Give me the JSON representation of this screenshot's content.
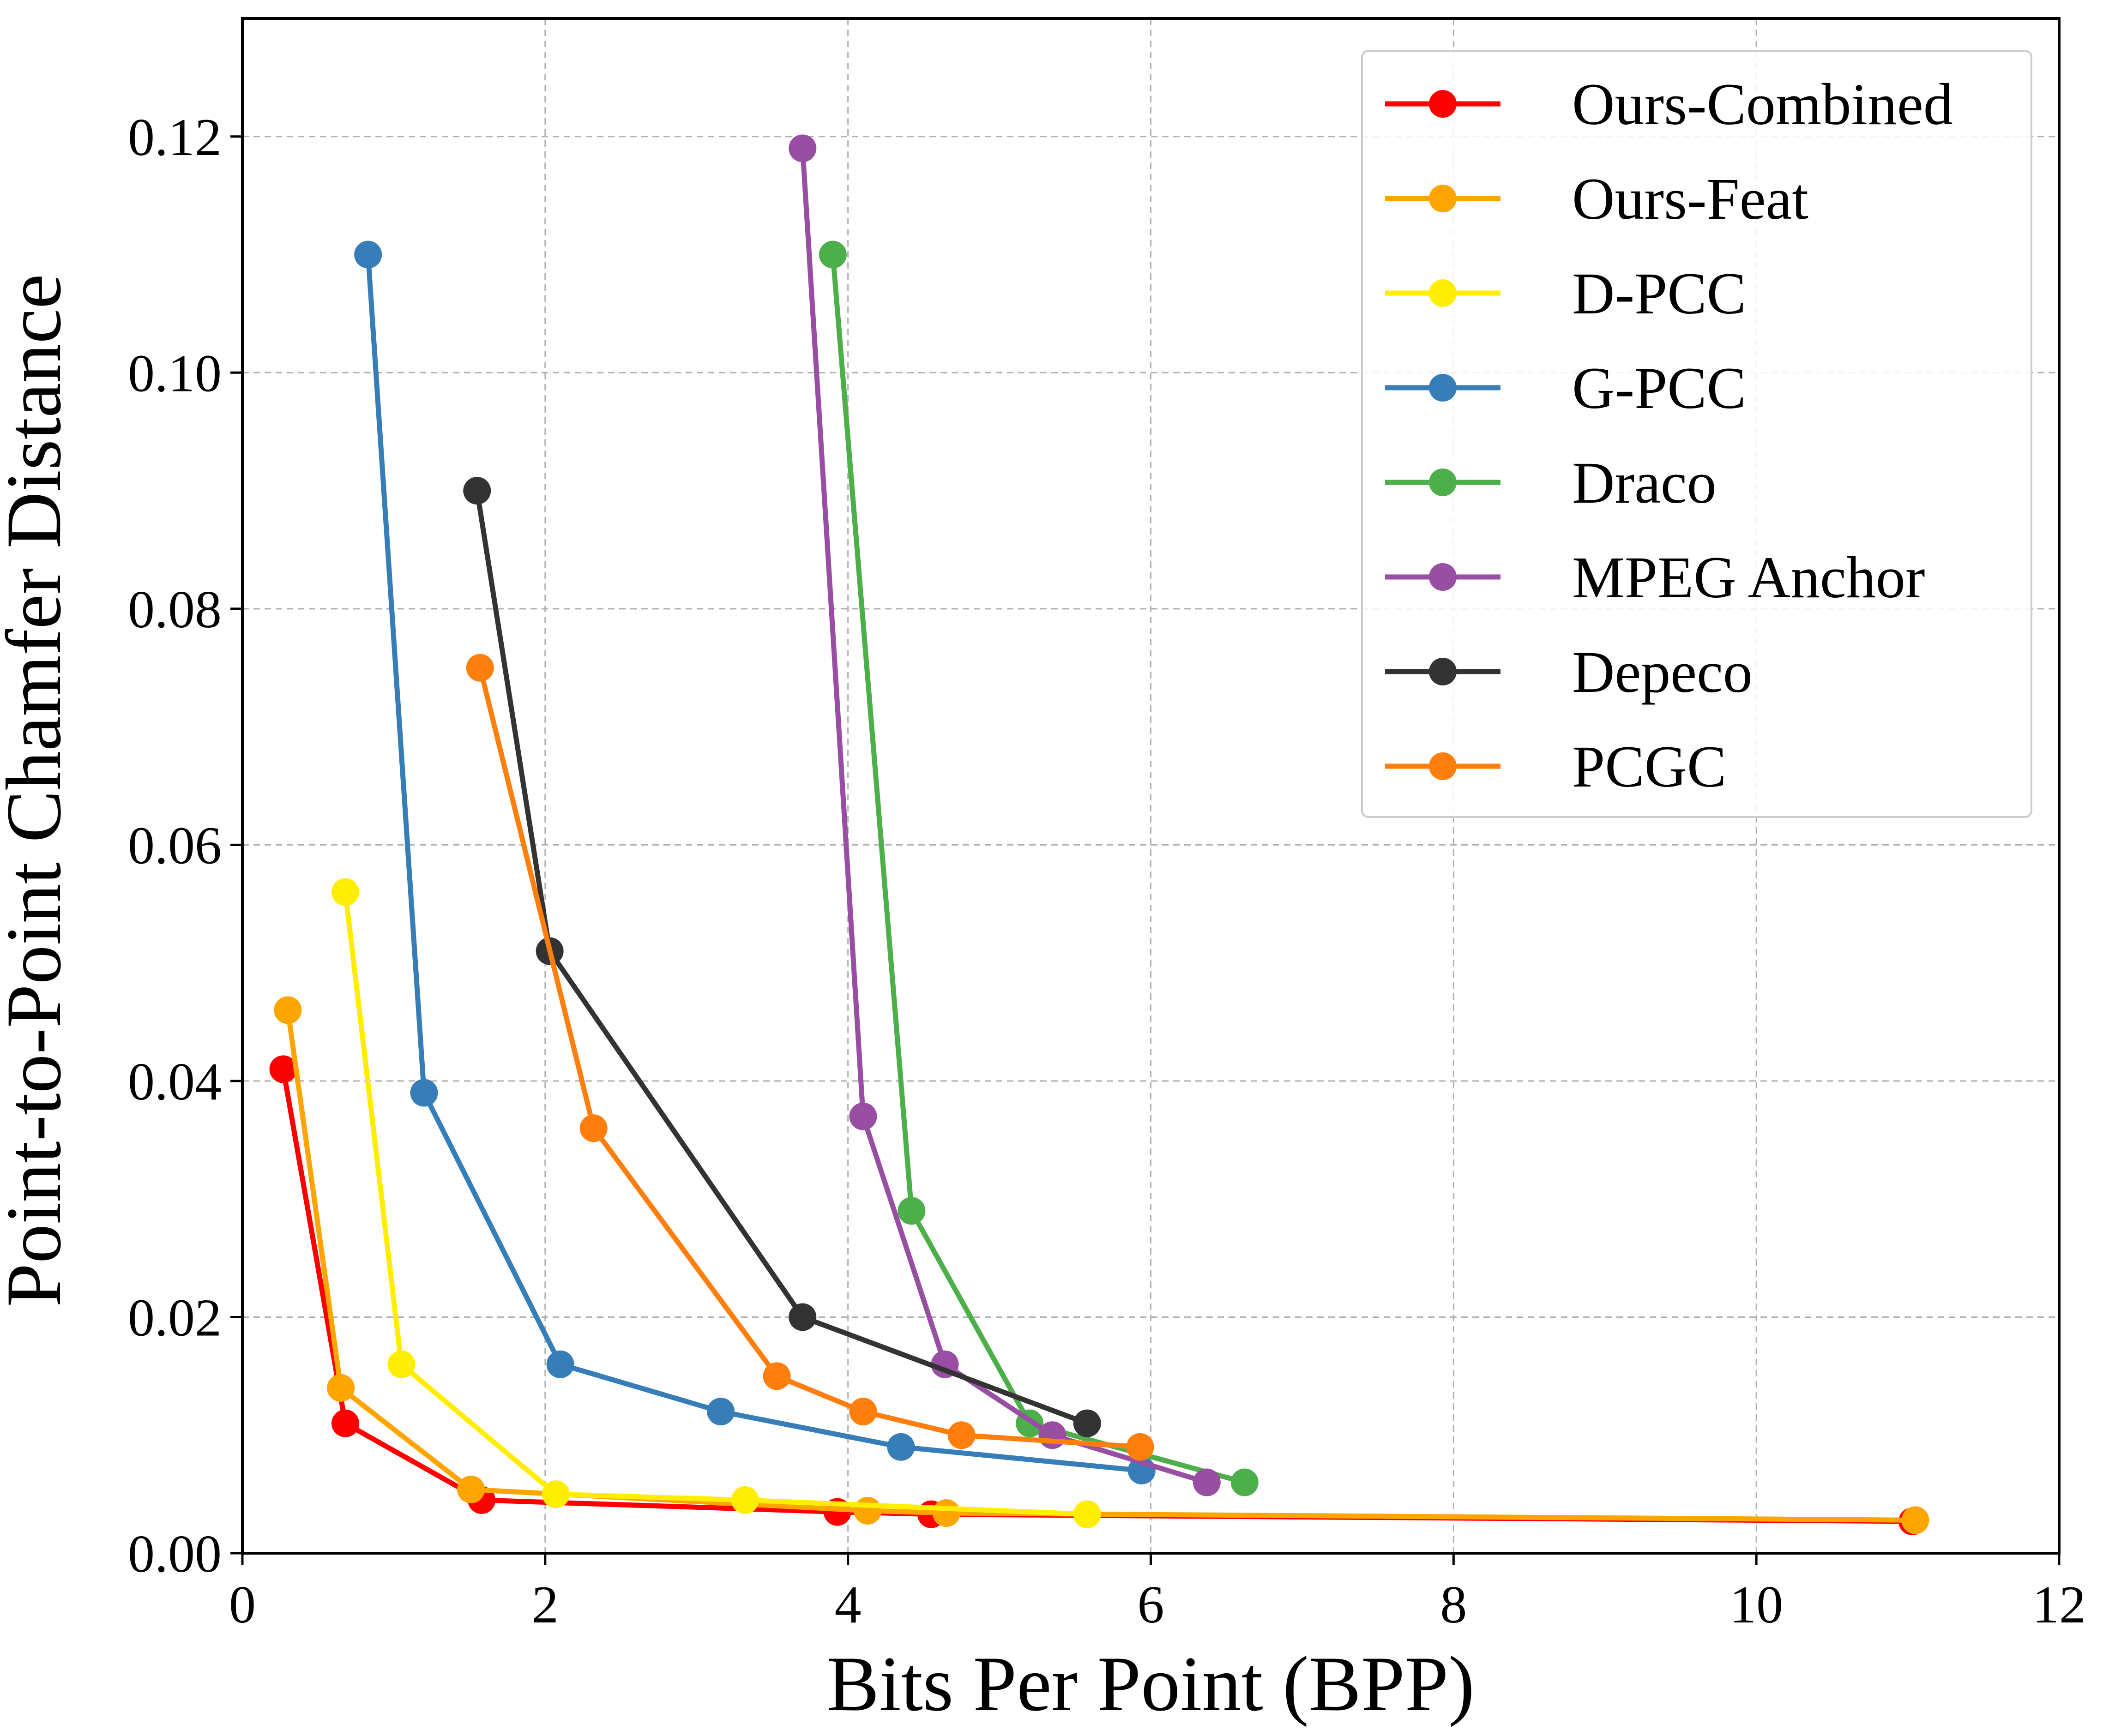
{
  "chart_data": {
    "type": "line",
    "title": "",
    "xlabel": "Bits Per Point (BPP)",
    "ylabel": "Point-to-Point Chamfer Distance",
    "xlim": [
      0,
      12
    ],
    "ylim": [
      0,
      0.13
    ],
    "xticks": [
      0,
      2,
      4,
      6,
      8,
      10,
      12
    ],
    "xtick_labels": [
      "0",
      "2",
      "4",
      "6",
      "8",
      "10",
      "12"
    ],
    "yticks": [
      0,
      0.02,
      0.04,
      0.06,
      0.08,
      0.1,
      0.12
    ],
    "ytick_labels": [
      "0.00",
      "0.02",
      "0.04",
      "0.06",
      "0.08",
      "0.10",
      "0.12"
    ],
    "grid": true,
    "legend_position": "top-right",
    "series": [
      {
        "name": "Ours-Combined",
        "color": "#ff0000",
        "x": [
          0.27,
          0.68,
          1.58,
          3.93,
          4.55,
          11.03
        ],
        "y": [
          0.041,
          0.011,
          0.0045,
          0.0035,
          0.0033,
          0.0027
        ]
      },
      {
        "name": "Ours-Feat",
        "color": "#ffa500",
        "x": [
          0.3,
          0.65,
          1.51,
          4.13,
          4.65,
          11.05
        ],
        "y": [
          0.046,
          0.014,
          0.0054,
          0.0036,
          0.0034,
          0.0028
        ]
      },
      {
        "name": "D-PCC",
        "color": "#ffee00",
        "x": [
          0.68,
          1.05,
          2.07,
          3.32,
          5.58
        ],
        "y": [
          0.056,
          0.016,
          0.005,
          0.0045,
          0.0033
        ]
      },
      {
        "name": "G-PCC",
        "color": "#377eb8",
        "x": [
          0.83,
          1.2,
          2.1,
          3.16,
          4.35,
          5.94
        ],
        "y": [
          0.11,
          0.039,
          0.016,
          0.012,
          0.009,
          0.007
        ]
      },
      {
        "name": "Draco",
        "color": "#4daf4a",
        "x": [
          3.9,
          4.42,
          5.2,
          6.62
        ],
        "y": [
          0.11,
          0.029,
          0.011,
          0.006
        ]
      },
      {
        "name": "MPEG Anchor",
        "color": "#984ea3",
        "x": [
          3.7,
          4.1,
          4.64,
          5.35,
          6.37
        ],
        "y": [
          0.119,
          0.037,
          0.016,
          0.01,
          0.006
        ]
      },
      {
        "name": "Depeco",
        "color": "#333333",
        "x": [
          1.55,
          2.03,
          3.7,
          5.58
        ],
        "y": [
          0.09,
          0.051,
          0.02,
          0.011
        ]
      },
      {
        "name": "PCGC",
        "color": "#ff7f0e",
        "x": [
          1.57,
          2.32,
          3.53,
          4.1,
          4.75,
          5.93
        ],
        "y": [
          0.075,
          0.036,
          0.015,
          0.012,
          0.01,
          0.009
        ]
      }
    ]
  }
}
